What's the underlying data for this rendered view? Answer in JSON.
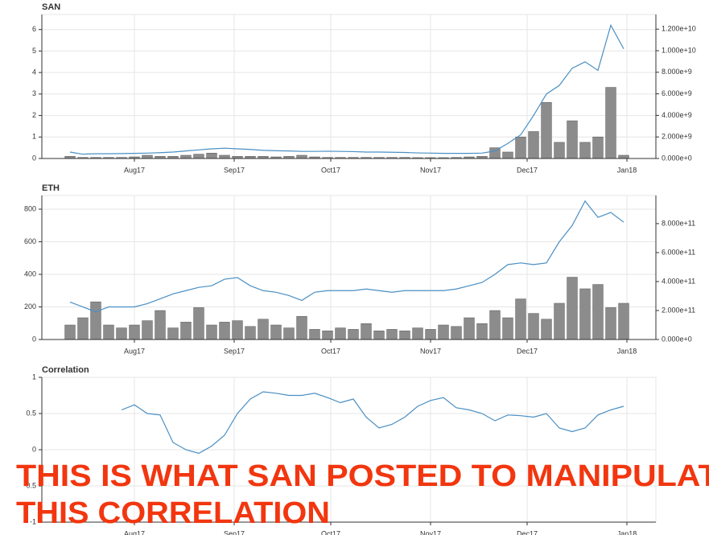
{
  "chart_data": [
    {
      "type": "line",
      "title": "SAN",
      "x": [
        -20,
        -16,
        -12,
        -8,
        -4,
        0,
        4,
        8,
        12,
        16,
        20,
        24,
        28,
        32,
        36,
        40,
        44,
        48,
        52,
        56,
        60,
        64,
        68,
        72,
        76,
        80,
        84,
        88,
        92,
        96,
        100,
        104,
        108,
        112,
        116,
        120,
        124,
        128,
        132,
        136,
        140,
        144,
        148,
        152
      ],
      "xlim": [
        -28.75,
        162
      ],
      "xticks": [
        {
          "value": 0,
          "label": "Aug17"
        },
        {
          "value": 31,
          "label": "Sep17"
        },
        {
          "value": 61,
          "label": "Oct17"
        },
        {
          "value": 92,
          "label": "Nov17"
        },
        {
          "value": 122,
          "label": "Dec17"
        },
        {
          "value": 153,
          "label": "Jan18"
        }
      ],
      "ylim": [
        0,
        6.7
      ],
      "yticks": [
        0,
        1,
        2,
        3,
        4,
        5,
        6
      ],
      "y2lim": [
        0,
        13360000000
      ],
      "y2ticks": [
        {
          "value": 0,
          "label": "0.000e+0"
        },
        {
          "value": 2000000000,
          "label": "2.000e+9"
        },
        {
          "value": 4000000000,
          "label": "4.000e+9"
        },
        {
          "value": 6000000000,
          "label": "6.000e+9"
        },
        {
          "value": 8000000000,
          "label": "8.000e+9"
        },
        {
          "value": 10000000000,
          "label": "1.000e+10"
        },
        {
          "value": 12000000000,
          "label": "1.200e+10"
        }
      ],
      "grid": true,
      "series": [
        {
          "type": "line",
          "color": "#4a8fc3",
          "values": [
            0.3,
            0.2,
            0.22,
            0.22,
            0.23,
            0.24,
            0.25,
            0.27,
            0.3,
            0.35,
            0.4,
            0.45,
            0.48,
            0.45,
            0.42,
            0.38,
            0.36,
            0.35,
            0.33,
            0.33,
            0.34,
            0.33,
            0.32,
            0.3,
            0.3,
            0.29,
            0.28,
            0.26,
            0.25,
            0.24,
            0.24,
            0.24,
            0.25,
            0.35,
            0.7,
            1.1,
            2.0,
            3.0,
            3.4,
            4.2,
            4.5,
            4.1,
            6.2,
            5.1
          ]
        },
        {
          "type": "bar",
          "axis": "y2",
          "color": "#8c8c8c",
          "values": [
            200000000,
            100000000,
            100000000,
            100000000,
            100000000,
            150000000,
            300000000,
            200000000,
            200000000,
            300000000,
            400000000,
            500000000,
            300000000,
            200000000,
            200000000,
            200000000,
            150000000,
            200000000,
            300000000,
            150000000,
            100000000,
            100000000,
            100000000,
            100000000,
            100000000,
            100000000,
            100000000,
            80000000,
            80000000,
            80000000,
            100000000,
            150000000,
            200000000,
            1000000000,
            600000000,
            2000000000,
            2500000000,
            5200000000,
            1500000000,
            3500000000,
            1500000000,
            2000000000,
            6600000000,
            300000000
          ]
        }
      ]
    },
    {
      "type": "line",
      "title": "ETH",
      "x": [
        -20,
        -16,
        -12,
        -8,
        -4,
        0,
        4,
        8,
        12,
        16,
        20,
        24,
        28,
        32,
        36,
        40,
        44,
        48,
        52,
        56,
        60,
        64,
        68,
        72,
        76,
        80,
        84,
        88,
        92,
        96,
        100,
        104,
        108,
        112,
        116,
        120,
        124,
        128,
        132,
        136,
        140,
        144,
        148,
        152
      ],
      "xlim": [
        -28.75,
        162
      ],
      "xticks": [
        {
          "value": 0,
          "label": "Aug17"
        },
        {
          "value": 31,
          "label": "Sep17"
        },
        {
          "value": 61,
          "label": "Oct17"
        },
        {
          "value": 92,
          "label": "Nov17"
        },
        {
          "value": 122,
          "label": "Dec17"
        },
        {
          "value": 153,
          "label": "Jan18"
        }
      ],
      "ylim": [
        0,
        884
      ],
      "yticks": [
        0,
        200,
        400,
        600,
        800
      ],
      "y2lim": [
        0,
        994000000000
      ],
      "y2ticks": [
        {
          "value": 0,
          "label": "0.000e+0"
        },
        {
          "value": 200000000000,
          "label": "2.000e+11"
        },
        {
          "value": 400000000000,
          "label": "4.000e+11"
        },
        {
          "value": 600000000000,
          "label": "6.000e+11"
        },
        {
          "value": 800000000000,
          "label": "8.000e+11"
        }
      ],
      "grid": true,
      "series": [
        {
          "type": "line",
          "color": "#4a8fc3",
          "values": [
            230,
            200,
            170,
            200,
            200,
            200,
            220,
            250,
            280,
            300,
            320,
            330,
            370,
            380,
            330,
            300,
            290,
            270,
            240,
            290,
            300,
            300,
            300,
            310,
            300,
            290,
            300,
            300,
            300,
            300,
            310,
            330,
            350,
            400,
            460,
            470,
            460,
            470,
            600,
            700,
            850,
            750,
            780,
            720
          ]
        },
        {
          "type": "bar",
          "axis": "y2",
          "color": "#8c8c8c",
          "values": [
            100000000000,
            150000000000,
            260000000000,
            100000000000,
            80000000000,
            100000000000,
            130000000000,
            200000000000,
            80000000000,
            120000000000,
            220000000000,
            100000000000,
            120000000000,
            130000000000,
            90000000000,
            140000000000,
            100000000000,
            80000000000,
            160000000000,
            70000000000,
            60000000000,
            80000000000,
            70000000000,
            110000000000,
            60000000000,
            70000000000,
            60000000000,
            80000000000,
            70000000000,
            100000000000,
            90000000000,
            150000000000,
            110000000000,
            200000000000,
            150000000000,
            280000000000,
            180000000000,
            140000000000,
            250000000000,
            430000000000,
            350000000000,
            380000000000,
            220000000000,
            250000000000
          ]
        }
      ]
    },
    {
      "type": "line",
      "title": "Correlation",
      "x": [
        -20,
        -16,
        -12,
        -8,
        -4,
        0,
        4,
        8,
        12,
        16,
        20,
        24,
        28,
        32,
        36,
        40,
        44,
        48,
        52,
        56,
        60,
        64,
        68,
        72,
        76,
        80,
        84,
        88,
        92,
        96,
        100,
        104,
        108,
        112,
        116,
        120,
        124,
        128,
        132,
        136,
        140,
        144,
        148,
        152
      ],
      "xlim": [
        -28.75,
        162
      ],
      "xticks": [
        {
          "value": 0,
          "label": "Aug17"
        },
        {
          "value": 31,
          "label": "Sep17"
        },
        {
          "value": 61,
          "label": "Oct17"
        },
        {
          "value": 92,
          "label": "Nov17"
        },
        {
          "value": 122,
          "label": "Dec17"
        },
        {
          "value": 153,
          "label": "Jan18"
        }
      ],
      "ylim": [
        -1,
        1
      ],
      "yticks": [
        -1,
        -0.5,
        0,
        0.5,
        1
      ],
      "grid": true,
      "series": [
        {
          "type": "line",
          "color": "#4a8fc3",
          "values": [
            null,
            null,
            null,
            null,
            0.55,
            0.62,
            0.5,
            0.48,
            0.1,
            0,
            -0.05,
            0.05,
            0.2,
            0.5,
            0.7,
            0.8,
            0.78,
            0.75,
            0.75,
            0.78,
            0.72,
            0.65,
            0.7,
            0.45,
            0.3,
            0.35,
            0.45,
            0.6,
            0.68,
            0.72,
            0.58,
            0.55,
            0.5,
            0.4,
            0.48,
            0.47,
            0.45,
            0.5,
            0.3,
            0.25,
            0.3,
            0.48,
            0.55,
            0.6
          ]
        }
      ]
    }
  ],
  "annotation": [
    "THIS IS WHAT SAN POSTED TO MANIPULATE",
    "THIS CORRELATION"
  ]
}
